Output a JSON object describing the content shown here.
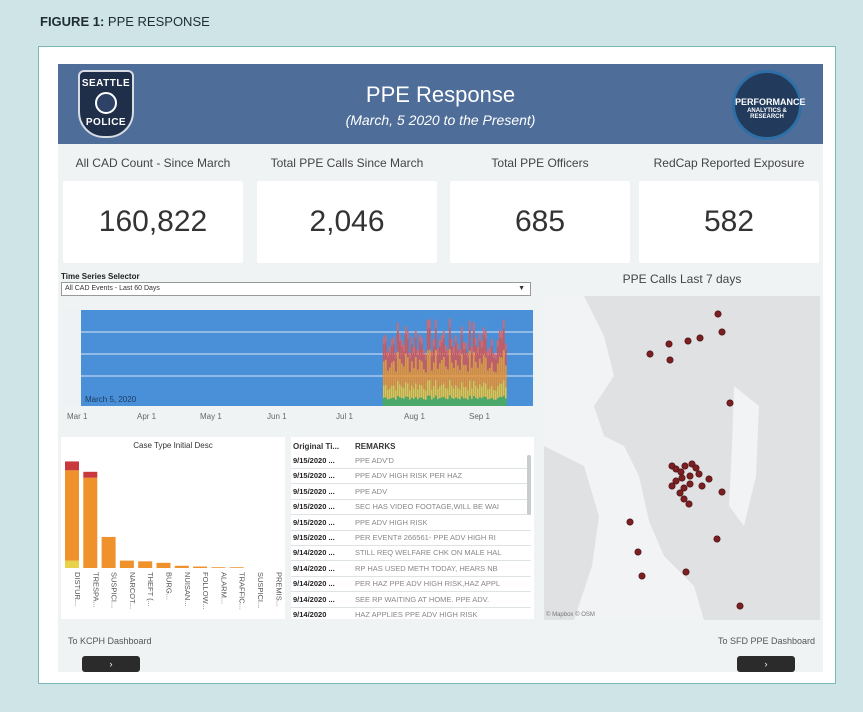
{
  "caption": {
    "label": "FIGURE 1:",
    "text": "PPE RESPONSE"
  },
  "header": {
    "badge_top": "SEATTLE",
    "badge_bottom": "POLICE",
    "title": "PPE Response",
    "subtitle": "(March, 5 2020 to the Present)",
    "right_logo_line1": "PERFORMANCE",
    "right_logo_line2": "ANALYTICS & RESEARCH"
  },
  "kpis": [
    {
      "label": "All CAD Count - Since March",
      "value": "160,822"
    },
    {
      "label": "Total PPE Calls Since March",
      "value": "2,046"
    },
    {
      "label": "Total PPE Officers",
      "value": "685"
    },
    {
      "label": "RedCap Reported Exposure",
      "value": "582"
    }
  ],
  "time_series": {
    "selector_label": "Time Series Selector",
    "selector_value": "All CAD Events - Last 60 Days",
    "annotation": "March 5, 2020",
    "x_ticks": [
      "Mar 1",
      "Apr 1",
      "May 1",
      "Jun 1",
      "Jul 1",
      "Aug 1",
      "Sep 1"
    ]
  },
  "chart_data": {
    "type": "bar",
    "title": "Case Type Initial Desc",
    "categories": [
      "DISTUR...",
      "TRESPA...",
      "SUSPICI...",
      "NARCOT...",
      "THEFT (...",
      "BURG...",
      "NUISAN...",
      "FOLLOW...",
      "ALARM...",
      "TRAFFIC...",
      "SUSPICI...",
      "PREMIS..."
    ],
    "series": [
      {
        "values": [
          12,
          8,
          0,
          0,
          0,
          0,
          0,
          0,
          0,
          0,
          0,
          0
        ]
      },
      {
        "values": [
          122,
          122,
          42,
          10,
          9,
          7,
          3,
          2,
          1,
          1,
          0,
          0
        ]
      },
      {
        "values": [
          10,
          0,
          0,
          0,
          0,
          0,
          0,
          0,
          0,
          0,
          0,
          0
        ]
      }
    ],
    "colors": [
      "#c8393c",
      "#f0922b",
      "#e7d24a"
    ]
  },
  "table": {
    "col1": "Original Ti...",
    "col2": "REMARKS",
    "rows": [
      {
        "date": "9/15/2020 ...",
        "remark": "PPE ADV'D"
      },
      {
        "date": "9/15/2020 ...",
        "remark": "PPE ADV HIGH RISK PER HAZ"
      },
      {
        "date": "9/15/2020 ...",
        "remark": "PPE ADV"
      },
      {
        "date": "9/15/2020 ...",
        "remark": "SEC HAS VIDEO FOOTAGE,WILL BE WAI"
      },
      {
        "date": "9/15/2020 ...",
        "remark": "PPE ADV HIGH RISK"
      },
      {
        "date": "9/15/2020 ...",
        "remark": "PER EVENT# 266561- PPE ADV HIGH RI"
      },
      {
        "date": "9/14/2020 ...",
        "remark": "STILL REQ WELFARE CHK ON MALE HAL"
      },
      {
        "date": "9/14/2020 ...",
        "remark": "RP HAS USED METH TODAY, HEARS NB"
      },
      {
        "date": "9/14/2020 ...",
        "remark": "PER HAZ PPE ADV HIGH RISK,HAZ APPL"
      },
      {
        "date": "9/14/2020 ...",
        "remark": "SEE RP WAITING AT HOME. PPE ADV."
      },
      {
        "date": "9/14/2020",
        "remark": "HAZ APPLIES PPE ADV HIGH RISK"
      }
    ]
  },
  "map": {
    "title": "PPE Calls Last 7 days",
    "attribution": "© Mapbox © OSM"
  },
  "nav": {
    "left_label": "To KCPH Dashboard",
    "right_label": "To SFD PPE Dashboard",
    "left_button": "›",
    "right_button": "›"
  }
}
